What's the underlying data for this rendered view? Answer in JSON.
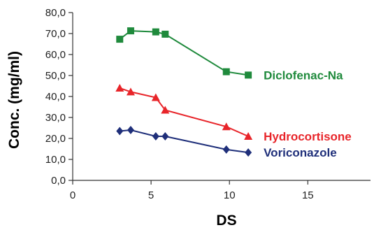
{
  "chart_data": {
    "type": "line",
    "title": "",
    "xlabel": "DS",
    "ylabel": "Conc. (mg/ml)",
    "xlim": [
      0,
      19
    ],
    "ylim": [
      0,
      80
    ],
    "x_ticks": [
      0,
      5,
      10,
      15
    ],
    "x_tick_labels": [
      "0",
      "5",
      "10",
      "15"
    ],
    "y_ticks": [
      0,
      10,
      20,
      30,
      40,
      50,
      60,
      70,
      80
    ],
    "y_tick_labels": [
      "0,0",
      "10,0",
      "20,0",
      "30,0",
      "40,0",
      "50,0",
      "60,0",
      "70,0",
      "80,0"
    ],
    "grid": false,
    "legend": "inline labels at series ends",
    "series": [
      {
        "name": "Diclofenac-Na",
        "color": "#1f8a3c",
        "marker": "square",
        "x": [
          3.0,
          3.7,
          5.3,
          5.9,
          9.8,
          11.2
        ],
        "y": [
          67.3,
          71.3,
          70.8,
          69.7,
          51.8,
          50.2
        ]
      },
      {
        "name": "Hydrocortisone",
        "color": "#e8252a",
        "marker": "triangle",
        "x": [
          3.0,
          3.7,
          5.3,
          5.9,
          9.8,
          11.2
        ],
        "y": [
          44.0,
          42.2,
          39.5,
          33.5,
          25.6,
          21.0
        ]
      },
      {
        "name": "Voriconazole",
        "color": "#1f2f7a",
        "marker": "diamond",
        "x": [
          3.0,
          3.7,
          5.3,
          5.9,
          9.8,
          11.2
        ],
        "y": [
          23.5,
          24.0,
          21.0,
          21.0,
          14.7,
          13.3
        ]
      }
    ]
  }
}
